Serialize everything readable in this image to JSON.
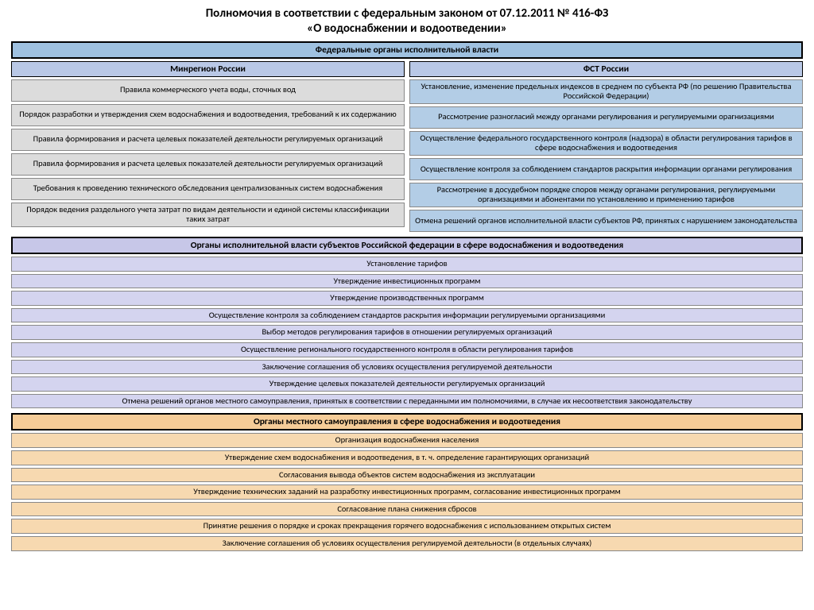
{
  "title_line1": "Полномочия в соответствии с федеральным законом от 07.12.2011 № 416-ФЗ",
  "title_line2": "«О водоснабжении и водоотведении»",
  "colors": {
    "federal_header_bg": "#9fc1e0",
    "col_header_bg": "#b9c8e6",
    "gray_item_bg": "#dcdcdc",
    "blue_item_bg": "#b3cde6",
    "regional_header_bg": "#c7c7e8",
    "lavender_item_bg": "#d4d4ef",
    "local_header_bg": "#f5cc98",
    "peach_item_bg": "#f7d9b0"
  },
  "federal": {
    "header": "Федеральные органы исполнительной власти",
    "left": {
      "header": "Минрегион России",
      "items": [
        "Правила коммерческого учета воды, сточных вод",
        "Порядок разработки и утверждения схем водоснабжения и водоотведения, требований к их содержанию",
        "Правила формирования и расчета целевых показателей деятельности регулируемых организаций",
        "Правила формирования и расчета целевых показателей деятельности регулируемых организаций",
        "Требования к проведению технического обследования централизованных систем водоснабжения",
        "Порядок ведения раздельного учета затрат по видам деятельности и единой системы классификации таких затрат"
      ]
    },
    "right": {
      "header": "ФСТ России",
      "items": [
        "Установление, изменение предельных индексов в среднем по субъекта РФ (по решению Правительства Российской Федерации)",
        "Рассмотрение разногласий между органами регулирования и регулируемыми орагнизациями",
        "Осуществление федерального государственного контроля (надзора) в области регулирования тарифов в сфере водоснабжения и водоотведения",
        "Осуществление контроля за соблюдением стандартов раскрытия информации органами регулирования",
        "Рассмотрение в досудебном порядке споров между органами регулирования, регулируемыми организациями и абонентами по установлению и применению тарифов",
        "Отмена решений органов исполнительной власти субъектов РФ, принятых с нарушением законодательства"
      ]
    }
  },
  "regional": {
    "header": "Органы исполнительной власти субъектов Российской федерации в сфере водоснабжения и водоотведения",
    "items": [
      "Установление тарифов",
      "Утверждение инвестиционных программ",
      "Утверждение производственных программ",
      "Осуществление контроля за соблюдением стандартов раскрытия информации регулируемыми организациями",
      "Выбор методов регулирования тарифов в отношении регулируемых организаций",
      "Осуществление регионального государственного контроля в области регулирования тарифов",
      "Заключение соглашения об условиях осуществления регулируемой деятельности",
      "Утверждение целевых показателей деятельности регулируемых организаций",
      "Отмена решений органов местного самоуправления, принятых в соответствии с переданными им полномочиями, в случае их несоответствия законодательству"
    ]
  },
  "local": {
    "header": "Органы местного самоуправления в сфере водоснабжения и водоотведения",
    "items": [
      "Организация водоснабжения населения",
      "Утверждение схем водоснабжения и водоотведения, в т. ч. определение гарантирующих организаций",
      "Согласования вывода объектов систем водоснабжения из эксплуатации",
      "Утверждение технических заданий на разработку инвестиционных программ, согласование инвестиционных программ",
      "Согласование плана снижения сбросов",
      "Принятие решения о порядке и сроках прекращения горячего водоснабжения с использованием открытых систем",
      "Заключение соглашения об условиях осуществления регулируемой деятельности (в отдельных случаях)"
    ]
  }
}
